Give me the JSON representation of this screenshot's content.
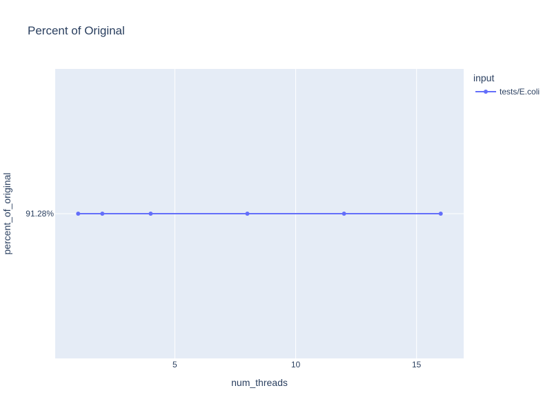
{
  "chart_data": {
    "type": "line",
    "title": "Percent of Original",
    "xlabel": "num_threads",
    "ylabel": "percent_of_original",
    "x_ticks": [
      5,
      10,
      15
    ],
    "y_ticks": [
      91.28
    ],
    "y_tick_labels": [
      "91.28%"
    ],
    "xlim": [
      0.05,
      16.95
    ],
    "ylim": [
      91.27,
      91.29
    ],
    "grid": true,
    "legend_title": "input",
    "legend_position": "top-right",
    "series": [
      {
        "name": "tests/E.coli",
        "color": "#636efa",
        "x": [
          1,
          2,
          4,
          8,
          12,
          16
        ],
        "y": [
          91.28,
          91.28,
          91.28,
          91.28,
          91.28,
          91.28
        ]
      }
    ]
  },
  "colors": {
    "plot_background": "#e5ecf6",
    "grid": "#ffffff",
    "text": "#2a3f5f",
    "series": "#636efa"
  }
}
